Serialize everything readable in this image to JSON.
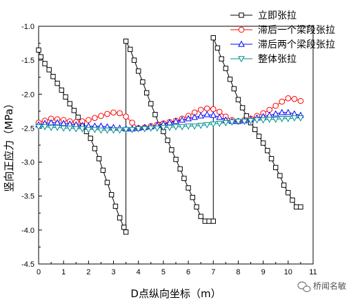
{
  "chart_data": {
    "type": "line",
    "xlabel": "D点纵向坐标（m）",
    "ylabel": "竖向正应力（MPa）",
    "xlim": [
      0,
      11
    ],
    "ylim": [
      -4.5,
      -1.0
    ],
    "xticks": [
      "0",
      "1",
      "2",
      "3",
      "4",
      "5",
      "6",
      "7",
      "8",
      "9",
      "10",
      "11"
    ],
    "yticks": [
      "-1.0",
      "-1.5",
      "-2.0",
      "-2.5",
      "-3.0",
      "-3.5",
      "-4.0",
      "-4.5"
    ],
    "legend_position": "top-right",
    "series": [
      {
        "name": "立即张拉",
        "color": "#000000",
        "marker": "square",
        "x": [
          0,
          0.09,
          0.25,
          0.42,
          0.58,
          0.75,
          0.92,
          1.08,
          1.25,
          1.42,
          1.58,
          1.75,
          1.92,
          2.08,
          2.25,
          2.42,
          2.58,
          2.75,
          2.92,
          3.08,
          3.25,
          3.42,
          3.5,
          3.5,
          3.67,
          3.83,
          4.0,
          4.17,
          4.33,
          4.5,
          4.67,
          4.83,
          5.0,
          5.17,
          5.33,
          5.5,
          5.67,
          5.83,
          6.0,
          6.17,
          6.33,
          6.5,
          6.67,
          6.83,
          7.0,
          7.0,
          7.17,
          7.33,
          7.5,
          7.67,
          7.83,
          8.0,
          8.17,
          8.33,
          8.5,
          8.67,
          8.83,
          9.0,
          9.17,
          9.33,
          9.5,
          9.67,
          9.83,
          10.0,
          10.17,
          10.33,
          10.5
        ],
        "y": [
          -1.35,
          -1.45,
          -1.55,
          -1.64,
          -1.74,
          -1.84,
          -1.94,
          -2.04,
          -2.14,
          -2.24,
          -2.34,
          -2.44,
          -2.55,
          -2.65,
          -2.8,
          -2.95,
          -3.12,
          -3.3,
          -3.48,
          -3.65,
          -3.82,
          -3.96,
          -4.03,
          -1.22,
          -1.34,
          -1.5,
          -1.66,
          -1.82,
          -1.98,
          -2.14,
          -2.3,
          -2.45,
          -2.55,
          -2.68,
          -2.82,
          -2.96,
          -3.1,
          -3.24,
          -3.38,
          -3.52,
          -3.66,
          -3.8,
          -3.87,
          -3.87,
          -3.87,
          -1.17,
          -1.32,
          -1.48,
          -1.62,
          -1.78,
          -1.92,
          -2.08,
          -2.2,
          -2.32,
          -2.42,
          -2.52,
          -2.62,
          -2.72,
          -2.83,
          -2.95,
          -3.08,
          -3.2,
          -3.34,
          -3.45,
          -3.56,
          -3.66,
          -3.66
        ]
      },
      {
        "name": "滞后一个梁段张拉",
        "color": "#ff0000",
        "marker": "circle",
        "x": [
          0,
          0.25,
          0.5,
          0.75,
          1.0,
          1.25,
          1.5,
          1.75,
          2.0,
          2.25,
          2.5,
          2.75,
          3.0,
          3.25,
          3.5,
          3.75,
          4.0,
          4.25,
          4.5,
          4.75,
          5.0,
          5.25,
          5.5,
          5.75,
          6.0,
          6.25,
          6.5,
          6.75,
          7.0,
          7.25,
          7.5,
          7.75,
          8.0,
          8.25,
          8.5,
          8.75,
          9.0,
          9.25,
          9.5,
          9.75,
          10.0,
          10.25,
          10.5
        ],
        "y": [
          -2.42,
          -2.39,
          -2.36,
          -2.37,
          -2.38,
          -2.4,
          -2.41,
          -2.4,
          -2.38,
          -2.35,
          -2.32,
          -2.29,
          -2.27,
          -2.28,
          -2.33,
          -2.42,
          -2.5,
          -2.49,
          -2.47,
          -2.45,
          -2.43,
          -2.41,
          -2.39,
          -2.36,
          -2.32,
          -2.27,
          -2.23,
          -2.21,
          -2.22,
          -2.26,
          -2.33,
          -2.38,
          -2.4,
          -2.38,
          -2.36,
          -2.32,
          -2.28,
          -2.23,
          -2.17,
          -2.11,
          -2.06,
          -2.07,
          -2.1
        ]
      },
      {
        "name": "滞后两个梁段张拉",
        "color": "#0000ff",
        "marker": "triangle-up",
        "x": [
          0,
          0.25,
          0.5,
          0.75,
          1.0,
          1.25,
          1.5,
          1.75,
          2.0,
          2.25,
          2.5,
          2.75,
          3.0,
          3.25,
          3.5,
          3.75,
          4.0,
          4.25,
          4.5,
          4.75,
          5.0,
          5.25,
          5.5,
          5.75,
          6.0,
          6.25,
          6.5,
          6.75,
          7.0,
          7.25,
          7.5,
          7.75,
          8.0,
          8.25,
          8.5,
          8.75,
          9.0,
          9.25,
          9.5,
          9.75,
          10.0,
          10.25,
          10.5
        ],
        "y": [
          -2.45,
          -2.43,
          -2.42,
          -2.42,
          -2.43,
          -2.44,
          -2.45,
          -2.46,
          -2.47,
          -2.47,
          -2.47,
          -2.48,
          -2.49,
          -2.5,
          -2.51,
          -2.51,
          -2.5,
          -2.49,
          -2.48,
          -2.46,
          -2.44,
          -2.42,
          -2.4,
          -2.38,
          -2.36,
          -2.34,
          -2.32,
          -2.3,
          -2.31,
          -2.34,
          -2.38,
          -2.4,
          -2.4,
          -2.39,
          -2.37,
          -2.35,
          -2.33,
          -2.31,
          -2.29,
          -2.27,
          -2.27,
          -2.29,
          -2.31
        ]
      },
      {
        "name": "整体张拉",
        "color": "#008b8b",
        "marker": "triangle-down",
        "x": [
          0,
          0.25,
          0.5,
          0.75,
          1.0,
          1.25,
          1.5,
          1.75,
          2.0,
          2.25,
          2.5,
          2.75,
          3.0,
          3.25,
          3.5,
          3.75,
          4.0,
          4.25,
          4.5,
          4.75,
          5.0,
          5.25,
          5.5,
          5.75,
          6.0,
          6.25,
          6.5,
          6.75,
          7.0,
          7.25,
          7.5,
          7.75,
          8.0,
          8.25,
          8.5,
          8.75,
          9.0,
          9.25,
          9.5,
          9.75,
          10.0,
          10.25,
          10.5
        ],
        "y": [
          -2.48,
          -2.48,
          -2.49,
          -2.49,
          -2.5,
          -2.5,
          -2.51,
          -2.51,
          -2.52,
          -2.52,
          -2.53,
          -2.53,
          -2.53,
          -2.53,
          -2.52,
          -2.52,
          -2.51,
          -2.51,
          -2.5,
          -2.5,
          -2.49,
          -2.49,
          -2.48,
          -2.48,
          -2.47,
          -2.47,
          -2.46,
          -2.45,
          -2.44,
          -2.43,
          -2.42,
          -2.41,
          -2.4,
          -2.4,
          -2.39,
          -2.38,
          -2.38,
          -2.37,
          -2.37,
          -2.36,
          -2.36,
          -2.35,
          -2.35
        ]
      }
    ]
  },
  "watermark": {
    "text": "桥闻名敏",
    "icon": "wechat-icon"
  }
}
